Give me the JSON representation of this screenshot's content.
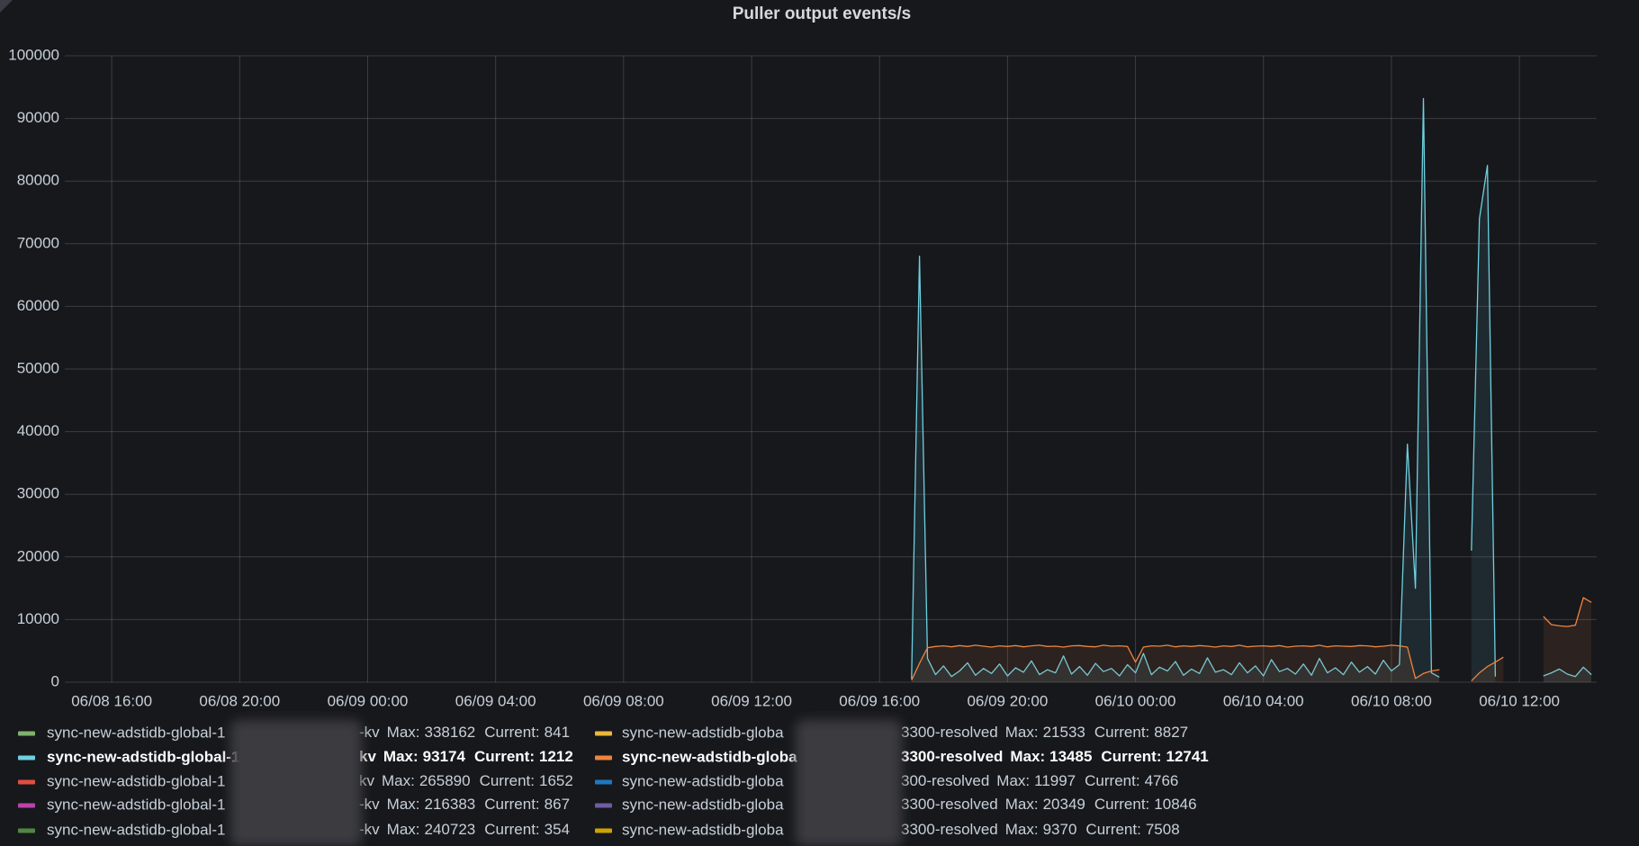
{
  "chart_data": {
    "type": "line",
    "title": "Puller output events/s",
    "xlim": [
      "06/08 14:32",
      "06/10 14:25"
    ],
    "xticks": [
      "06/08 16:00",
      "06/08 20:00",
      "06/09 00:00",
      "06/09 04:00",
      "06/09 08:00",
      "06/09 12:00",
      "06/09 16:00",
      "06/09 20:00",
      "06/10 00:00",
      "06/10 04:00",
      "06/10 08:00",
      "06/10 12:00"
    ],
    "ylim": [
      0,
      100000
    ],
    "yticks": [
      0,
      10000,
      20000,
      30000,
      40000,
      50000,
      60000,
      70000,
      80000,
      90000,
      100000
    ],
    "grid": true,
    "fill_opacity": 0.1,
    "legend_labels": {
      "max": "Max:",
      "current": "Current:"
    },
    "x": [
      "06/09 17:00",
      "06/09 17:15",
      "06/09 17:30",
      "06/09 17:45",
      "06/09 18:00",
      "06/09 18:15",
      "06/09 18:30",
      "06/09 18:45",
      "06/09 19:00",
      "06/09 19:15",
      "06/09 19:30",
      "06/09 19:45",
      "06/09 20:00",
      "06/09 20:15",
      "06/09 20:30",
      "06/09 20:45",
      "06/09 21:00",
      "06/09 21:15",
      "06/09 21:30",
      "06/09 21:45",
      "06/09 22:00",
      "06/09 22:15",
      "06/09 22:30",
      "06/09 22:45",
      "06/09 23:00",
      "06/09 23:15",
      "06/09 23:30",
      "06/09 23:45",
      "06/10 00:00",
      "06/10 00:15",
      "06/10 00:30",
      "06/10 00:45",
      "06/10 01:00",
      "06/10 01:15",
      "06/10 01:30",
      "06/10 01:45",
      "06/10 02:00",
      "06/10 02:15",
      "06/10 02:30",
      "06/10 02:45",
      "06/10 03:00",
      "06/10 03:15",
      "06/10 03:30",
      "06/10 03:45",
      "06/10 04:00",
      "06/10 04:15",
      "06/10 04:30",
      "06/10 04:45",
      "06/10 05:00",
      "06/10 05:15",
      "06/10 05:30",
      "06/10 05:45",
      "06/10 06:00",
      "06/10 06:15",
      "06/10 06:30",
      "06/10 06:45",
      "06/10 07:00",
      "06/10 07:15",
      "06/10 07:30",
      "06/10 07:45",
      "06/10 08:00",
      "06/10 08:15",
      "06/10 08:30",
      "06/10 08:45",
      "06/10 09:00",
      "06/10 09:15",
      "06/10 09:30",
      "06/10 09:45",
      "06/10 10:00",
      "06/10 10:15",
      "06/10 10:30",
      "06/10 10:45",
      "06/10 11:00",
      "06/10 11:15",
      "06/10 11:30",
      "06/10 11:45",
      "06/10 12:00",
      "06/10 12:15",
      "06/10 12:30",
      "06/10 12:45",
      "06/10 13:00",
      "06/10 13:15",
      "06/10 13:30",
      "06/10 13:45",
      "06/10 14:00",
      "06/10 14:15"
    ],
    "series": [
      {
        "name": "sync-new-adstidb-global-1",
        "suffix": "-kv",
        "color": "#7EB26D",
        "max": 338162,
        "current": 841
      },
      {
        "name": "sync-new-adstidb-global-1",
        "suffix": "kv",
        "color": "#6ED0E0",
        "max": 93174,
        "current": 1212,
        "highlight": true,
        "values": [
          500,
          68000,
          3800,
          1200,
          2600,
          900,
          1800,
          3100,
          1100,
          2200,
          1400,
          2900,
          1000,
          2300,
          1600,
          3400,
          1200,
          2000,
          1500,
          4200,
          1300,
          2500,
          1100,
          3000,
          1700,
          2200,
          1000,
          2800,
          1500,
          4600,
          1200,
          2400,
          1800,
          3300,
          1100,
          2100,
          1400,
          3900,
          1600,
          2000,
          1200,
          3100,
          1500,
          2600,
          1000,
          3600,
          1700,
          2200,
          1300,
          2900,
          1100,
          3800,
          1500,
          2300,
          1200,
          3200,
          1600,
          2500,
          1300,
          3500,
          1800,
          2800,
          38000,
          15000,
          93174,
          1500,
          800,
          null,
          null,
          null,
          21000,
          74000,
          82500,
          900,
          null,
          null,
          null,
          null,
          null,
          1000,
          1500,
          2100,
          1300,
          900,
          2400,
          1212
        ]
      },
      {
        "name": "sync-new-adstidb-global-1",
        "suffix": "kv",
        "color": "#E24D42",
        "max": 265890,
        "current": 1652
      },
      {
        "name": "sync-new-adstidb-global-1",
        "suffix": "-kv",
        "color": "#BA43A9",
        "max": 216383,
        "current": 867
      },
      {
        "name": "sync-new-adstidb-global-1",
        "suffix": "-kv",
        "color": "#508642",
        "max": 240723,
        "current": 354
      },
      {
        "name": "sync-new-adstidb-globa",
        "suffix": "3300-resolved",
        "color": "#EAB839",
        "max": 21533,
        "current": 8827
      },
      {
        "name": "sync-new-adstidb-globa",
        "suffix": "3300-resolved",
        "color": "#EF843C",
        "max": 13485,
        "current": 12741,
        "highlight": true,
        "values": [
          300,
          3000,
          5500,
          5700,
          5800,
          5650,
          5850,
          5700,
          5900,
          5750,
          5600,
          5800,
          5700,
          5850,
          5650,
          5800,
          5900,
          5700,
          5750,
          5600,
          5800,
          5850,
          5700,
          5650,
          5900,
          5750,
          5800,
          5700,
          3200,
          5600,
          5800,
          5750,
          5900,
          5650,
          5800,
          5700,
          5850,
          5750,
          5600,
          5800,
          5700,
          5900,
          5650,
          5750,
          5800,
          5700,
          5850,
          5600,
          5750,
          5800,
          5700,
          5900,
          5650,
          5800,
          5750,
          5700,
          5850,
          5800,
          5650,
          5750,
          5900,
          5800,
          5600,
          600,
          1400,
          1800,
          2000,
          null,
          null,
          null,
          200,
          1500,
          2500,
          3200,
          4000,
          null,
          null,
          null,
          null,
          10500,
          9200,
          9000,
          8900,
          9100,
          13485,
          12741
        ]
      },
      {
        "name": "sync-new-adstidb-globa",
        "suffix": "300-resolved",
        "color": "#1F78C1",
        "max": 11997,
        "current": 4766
      },
      {
        "name": "sync-new-adstidb-globa",
        "suffix": "3300-resolved",
        "color": "#705DA0",
        "max": 20349,
        "current": 10846
      },
      {
        "name": "sync-new-adstidb-globa",
        "suffix": "3300-resolved",
        "color": "#CCA300",
        "max": 9370,
        "current": 7508
      }
    ]
  }
}
